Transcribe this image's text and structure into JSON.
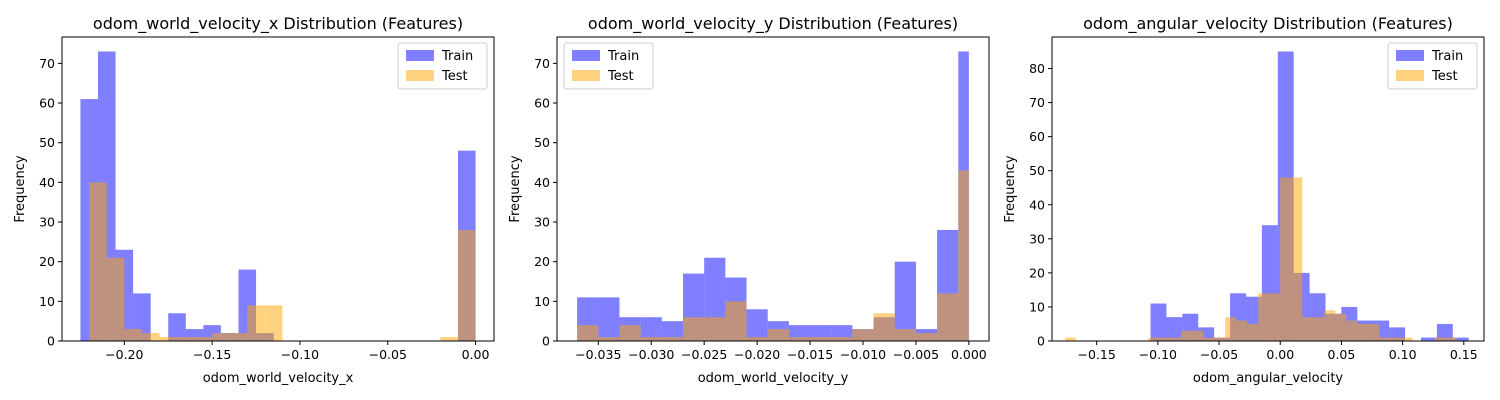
{
  "colors": {
    "train": "#8080ff",
    "test": "#ffd280",
    "overlap": "#bf8c80",
    "axis": "#000000",
    "legend_border": "#cccccc"
  },
  "chart_data": [
    {
      "type": "bar",
      "title": "odom_world_velocity_x Distribution (Features)",
      "xlabel": "odom_world_velocity_x",
      "ylabel": "Frequency",
      "xlim": [
        -0.2355,
        0.0105
      ],
      "ylim": [
        0,
        76.65
      ],
      "xticks": [
        -0.2,
        -0.15,
        -0.1,
        -0.05,
        0.0
      ],
      "xtick_labels": [
        "−0.20",
        "−0.15",
        "−0.10",
        "−0.05",
        "0.00"
      ],
      "yticks": [
        0,
        10,
        20,
        30,
        40,
        50,
        60,
        70
      ],
      "legend": [
        "Train",
        "Test"
      ],
      "legend_position": "upper right",
      "series": [
        {
          "name": "Train",
          "bins": [
            [
              -0.225,
              -0.215,
              61
            ],
            [
              -0.215,
              -0.205,
              73
            ],
            [
              -0.205,
              -0.195,
              23
            ],
            [
              -0.195,
              -0.185,
              12
            ],
            [
              -0.185,
              -0.175,
              0
            ],
            [
              -0.175,
              -0.165,
              7
            ],
            [
              -0.165,
              -0.155,
              3
            ],
            [
              -0.155,
              -0.145,
              4
            ],
            [
              -0.145,
              -0.135,
              2
            ],
            [
              -0.135,
              -0.125,
              18
            ],
            [
              -0.125,
              -0.115,
              2
            ],
            [
              -0.115,
              -0.105,
              0
            ],
            [
              -0.01,
              0.0,
              48
            ]
          ]
        },
        {
          "name": "Test",
          "bins": [
            [
              -0.22,
              -0.21,
              40
            ],
            [
              -0.21,
              -0.2,
              21
            ],
            [
              -0.2,
              -0.19,
              3
            ],
            [
              -0.19,
              -0.18,
              2
            ],
            [
              -0.18,
              -0.17,
              1
            ],
            [
              -0.17,
              -0.16,
              1
            ],
            [
              -0.16,
              -0.15,
              1
            ],
            [
              -0.15,
              -0.14,
              2
            ],
            [
              -0.14,
              -0.13,
              2
            ],
            [
              -0.13,
              -0.12,
              9
            ],
            [
              -0.12,
              -0.11,
              9
            ],
            [
              -0.02,
              -0.01,
              1
            ],
            [
              -0.01,
              0.0,
              28
            ]
          ]
        }
      ]
    },
    {
      "type": "bar",
      "title": "odom_world_velocity_y Distribution (Features)",
      "xlabel": "odom_world_velocity_y",
      "ylabel": "Frequency",
      "xlim": [
        -0.0389,
        0.0019
      ],
      "ylim": [
        0,
        76.65
      ],
      "xticks": [
        -0.035,
        -0.03,
        -0.025,
        -0.02,
        -0.015,
        -0.01,
        -0.005,
        0.0
      ],
      "xtick_labels": [
        "−0.035",
        "−0.030",
        "−0.025",
        "−0.020",
        "−0.015",
        "−0.010",
        "−0.005",
        "0.000"
      ],
      "yticks": [
        0,
        10,
        20,
        30,
        40,
        50,
        60,
        70
      ],
      "legend": [
        "Train",
        "Test"
      ],
      "legend_position": "upper left",
      "series": [
        {
          "name": "Train",
          "bins": [
            [
              -0.037,
              -0.035,
              11
            ],
            [
              -0.035,
              -0.033,
              11
            ],
            [
              -0.033,
              -0.031,
              6
            ],
            [
              -0.031,
              -0.029,
              6
            ],
            [
              -0.029,
              -0.027,
              5
            ],
            [
              -0.027,
              -0.025,
              17
            ],
            [
              -0.025,
              -0.023,
              21
            ],
            [
              -0.023,
              -0.021,
              16
            ],
            [
              -0.021,
              -0.019,
              8
            ],
            [
              -0.019,
              -0.017,
              5
            ],
            [
              -0.017,
              -0.015,
              4
            ],
            [
              -0.015,
              -0.013,
              4
            ],
            [
              -0.013,
              -0.011,
              4
            ],
            [
              -0.011,
              -0.009,
              3
            ],
            [
              -0.009,
              -0.007,
              6
            ],
            [
              -0.007,
              -0.005,
              20
            ],
            [
              -0.005,
              -0.003,
              3
            ],
            [
              -0.003,
              -0.001,
              28
            ],
            [
              -0.001,
              0.0,
              73
            ]
          ]
        },
        {
          "name": "Test",
          "bins": [
            [
              -0.037,
              -0.035,
              4
            ],
            [
              -0.035,
              -0.033,
              1
            ],
            [
              -0.033,
              -0.031,
              4
            ],
            [
              -0.031,
              -0.029,
              1
            ],
            [
              -0.029,
              -0.027,
              1
            ],
            [
              -0.027,
              -0.025,
              6
            ],
            [
              -0.025,
              -0.023,
              6
            ],
            [
              -0.023,
              -0.021,
              10
            ],
            [
              -0.021,
              -0.019,
              1
            ],
            [
              -0.019,
              -0.017,
              3
            ],
            [
              -0.017,
              -0.015,
              1
            ],
            [
              -0.015,
              -0.013,
              1
            ],
            [
              -0.013,
              -0.011,
              1
            ],
            [
              -0.011,
              -0.009,
              3
            ],
            [
              -0.009,
              -0.007,
              7
            ],
            [
              -0.007,
              -0.005,
              3
            ],
            [
              -0.005,
              -0.003,
              2
            ],
            [
              -0.003,
              -0.001,
              12
            ],
            [
              -0.001,
              0.0,
              43
            ]
          ]
        }
      ]
    },
    {
      "type": "bar",
      "title": "odom_angular_velocity Distribution (Features)",
      "xlabel": "odom_angular_velocity",
      "ylabel": "Frequency",
      "xlim": [
        -0.1865,
        0.1665
      ],
      "ylim": [
        0,
        89.25
      ],
      "xticks": [
        -0.15,
        -0.1,
        -0.05,
        0.0,
        0.05,
        0.1,
        0.15
      ],
      "xtick_labels": [
        "−0.15",
        "−0.10",
        "−0.05",
        "0.00",
        "0.05",
        "0.10",
        "0.15"
      ],
      "yticks": [
        0,
        10,
        20,
        30,
        40,
        50,
        60,
        70,
        80
      ],
      "legend": [
        "Train",
        "Test"
      ],
      "legend_position": "upper right",
      "series": [
        {
          "name": "Train",
          "bins": [
            [
              -0.106,
              -0.093,
              11
            ],
            [
              -0.093,
              -0.08,
              7
            ],
            [
              -0.08,
              -0.067,
              8
            ],
            [
              -0.067,
              -0.054,
              4
            ],
            [
              -0.054,
              -0.041,
              1
            ],
            [
              -0.041,
              -0.028,
              14
            ],
            [
              -0.028,
              -0.015,
              13
            ],
            [
              -0.015,
              -0.002,
              34
            ],
            [
              -0.002,
              0.011,
              85
            ],
            [
              0.011,
              0.024,
              20
            ],
            [
              0.024,
              0.037,
              14
            ],
            [
              0.037,
              0.05,
              8
            ],
            [
              0.05,
              0.063,
              10
            ],
            [
              0.063,
              0.076,
              6
            ],
            [
              0.076,
              0.089,
              6
            ],
            [
              0.089,
              0.102,
              4
            ],
            [
              0.102,
              0.115,
              0
            ],
            [
              0.115,
              0.128,
              1
            ],
            [
              0.128,
              0.141,
              5
            ],
            [
              0.141,
              0.154,
              1
            ]
          ]
        },
        {
          "name": "Test",
          "bins": [
            [
              -0.176,
              -0.167,
              1
            ],
            [
              -0.108,
              -0.099,
              1
            ],
            [
              -0.099,
              -0.09,
              1
            ],
            [
              -0.09,
              -0.081,
              1
            ],
            [
              -0.081,
              -0.072,
              3
            ],
            [
              -0.072,
              -0.063,
              3
            ],
            [
              -0.063,
              -0.054,
              1
            ],
            [
              -0.054,
              -0.045,
              1
            ],
            [
              -0.045,
              -0.036,
              7
            ],
            [
              -0.036,
              -0.027,
              6
            ],
            [
              -0.027,
              -0.018,
              5
            ],
            [
              -0.018,
              -0.009,
              14
            ],
            [
              -0.009,
              0.0,
              14
            ],
            [
              0.0,
              0.009,
              48
            ],
            [
              0.009,
              0.018,
              48
            ],
            [
              0.018,
              0.027,
              7
            ],
            [
              0.027,
              0.036,
              7
            ],
            [
              0.036,
              0.045,
              9
            ],
            [
              0.045,
              0.054,
              8
            ],
            [
              0.054,
              0.063,
              6
            ],
            [
              0.063,
              0.072,
              5
            ],
            [
              0.072,
              0.081,
              5
            ],
            [
              0.081,
              0.09,
              1
            ],
            [
              0.09,
              0.099,
              1
            ],
            [
              0.099,
              0.108,
              1
            ],
            [
              0.126,
              0.135,
              1
            ],
            [
              0.135,
              0.144,
              1
            ]
          ]
        }
      ]
    }
  ]
}
